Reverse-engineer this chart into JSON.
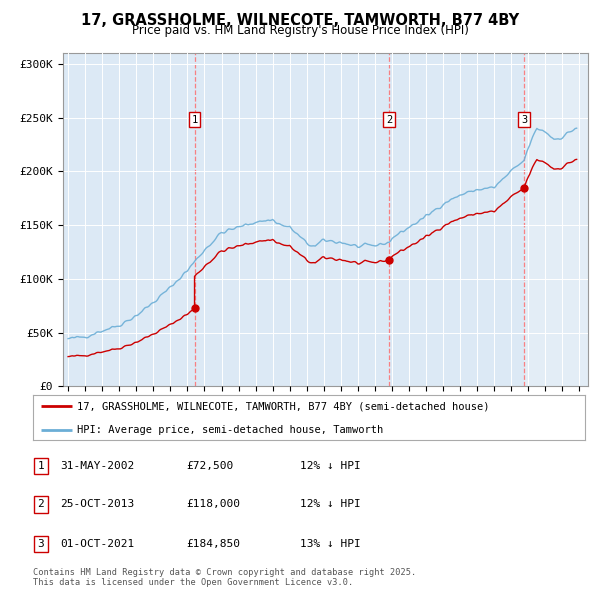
{
  "title": "17, GRASSHOLME, WILNECOTE, TAMWORTH, B77 4BY",
  "subtitle": "Price paid vs. HM Land Registry's House Price Index (HPI)",
  "background_color": "#ffffff",
  "plot_bg_color": "#dce9f5",
  "yticks": [
    0,
    50000,
    100000,
    150000,
    200000,
    250000,
    300000
  ],
  "ytick_labels": [
    "£0",
    "£50K",
    "£100K",
    "£150K",
    "£200K",
    "£250K",
    "£300K"
  ],
  "xlim_start": 1994.7,
  "xlim_end": 2025.5,
  "ylim": [
    0,
    310000
  ],
  "hpi_color": "#6baed6",
  "price_color": "#cc0000",
  "transaction_dates": [
    2002.42,
    2013.83,
    2021.75
  ],
  "transaction_labels": [
    "1",
    "2",
    "3"
  ],
  "transaction_prices": [
    72500,
    118000,
    184850
  ],
  "sale_dates_raw": [
    2002.42,
    2013.83,
    2021.75
  ],
  "legend_items": [
    "17, GRASSHOLME, WILNECOTE, TAMWORTH, B77 4BY (semi-detached house)",
    "HPI: Average price, semi-detached house, Tamworth"
  ],
  "table_entries": [
    {
      "num": "1",
      "date": "31-MAY-2002",
      "price": "£72,500",
      "note": "12% ↓ HPI"
    },
    {
      "num": "2",
      "date": "25-OCT-2013",
      "price": "£118,000",
      "note": "12% ↓ HPI"
    },
    {
      "num": "3",
      "date": "01-OCT-2021",
      "price": "£184,850",
      "note": "13% ↓ HPI"
    }
  ],
  "footer": "Contains HM Land Registry data © Crown copyright and database right 2025.\nThis data is licensed under the Open Government Licence v3.0.",
  "highlight_after_date": 2021.75,
  "highlight_color": "#dce9f5"
}
